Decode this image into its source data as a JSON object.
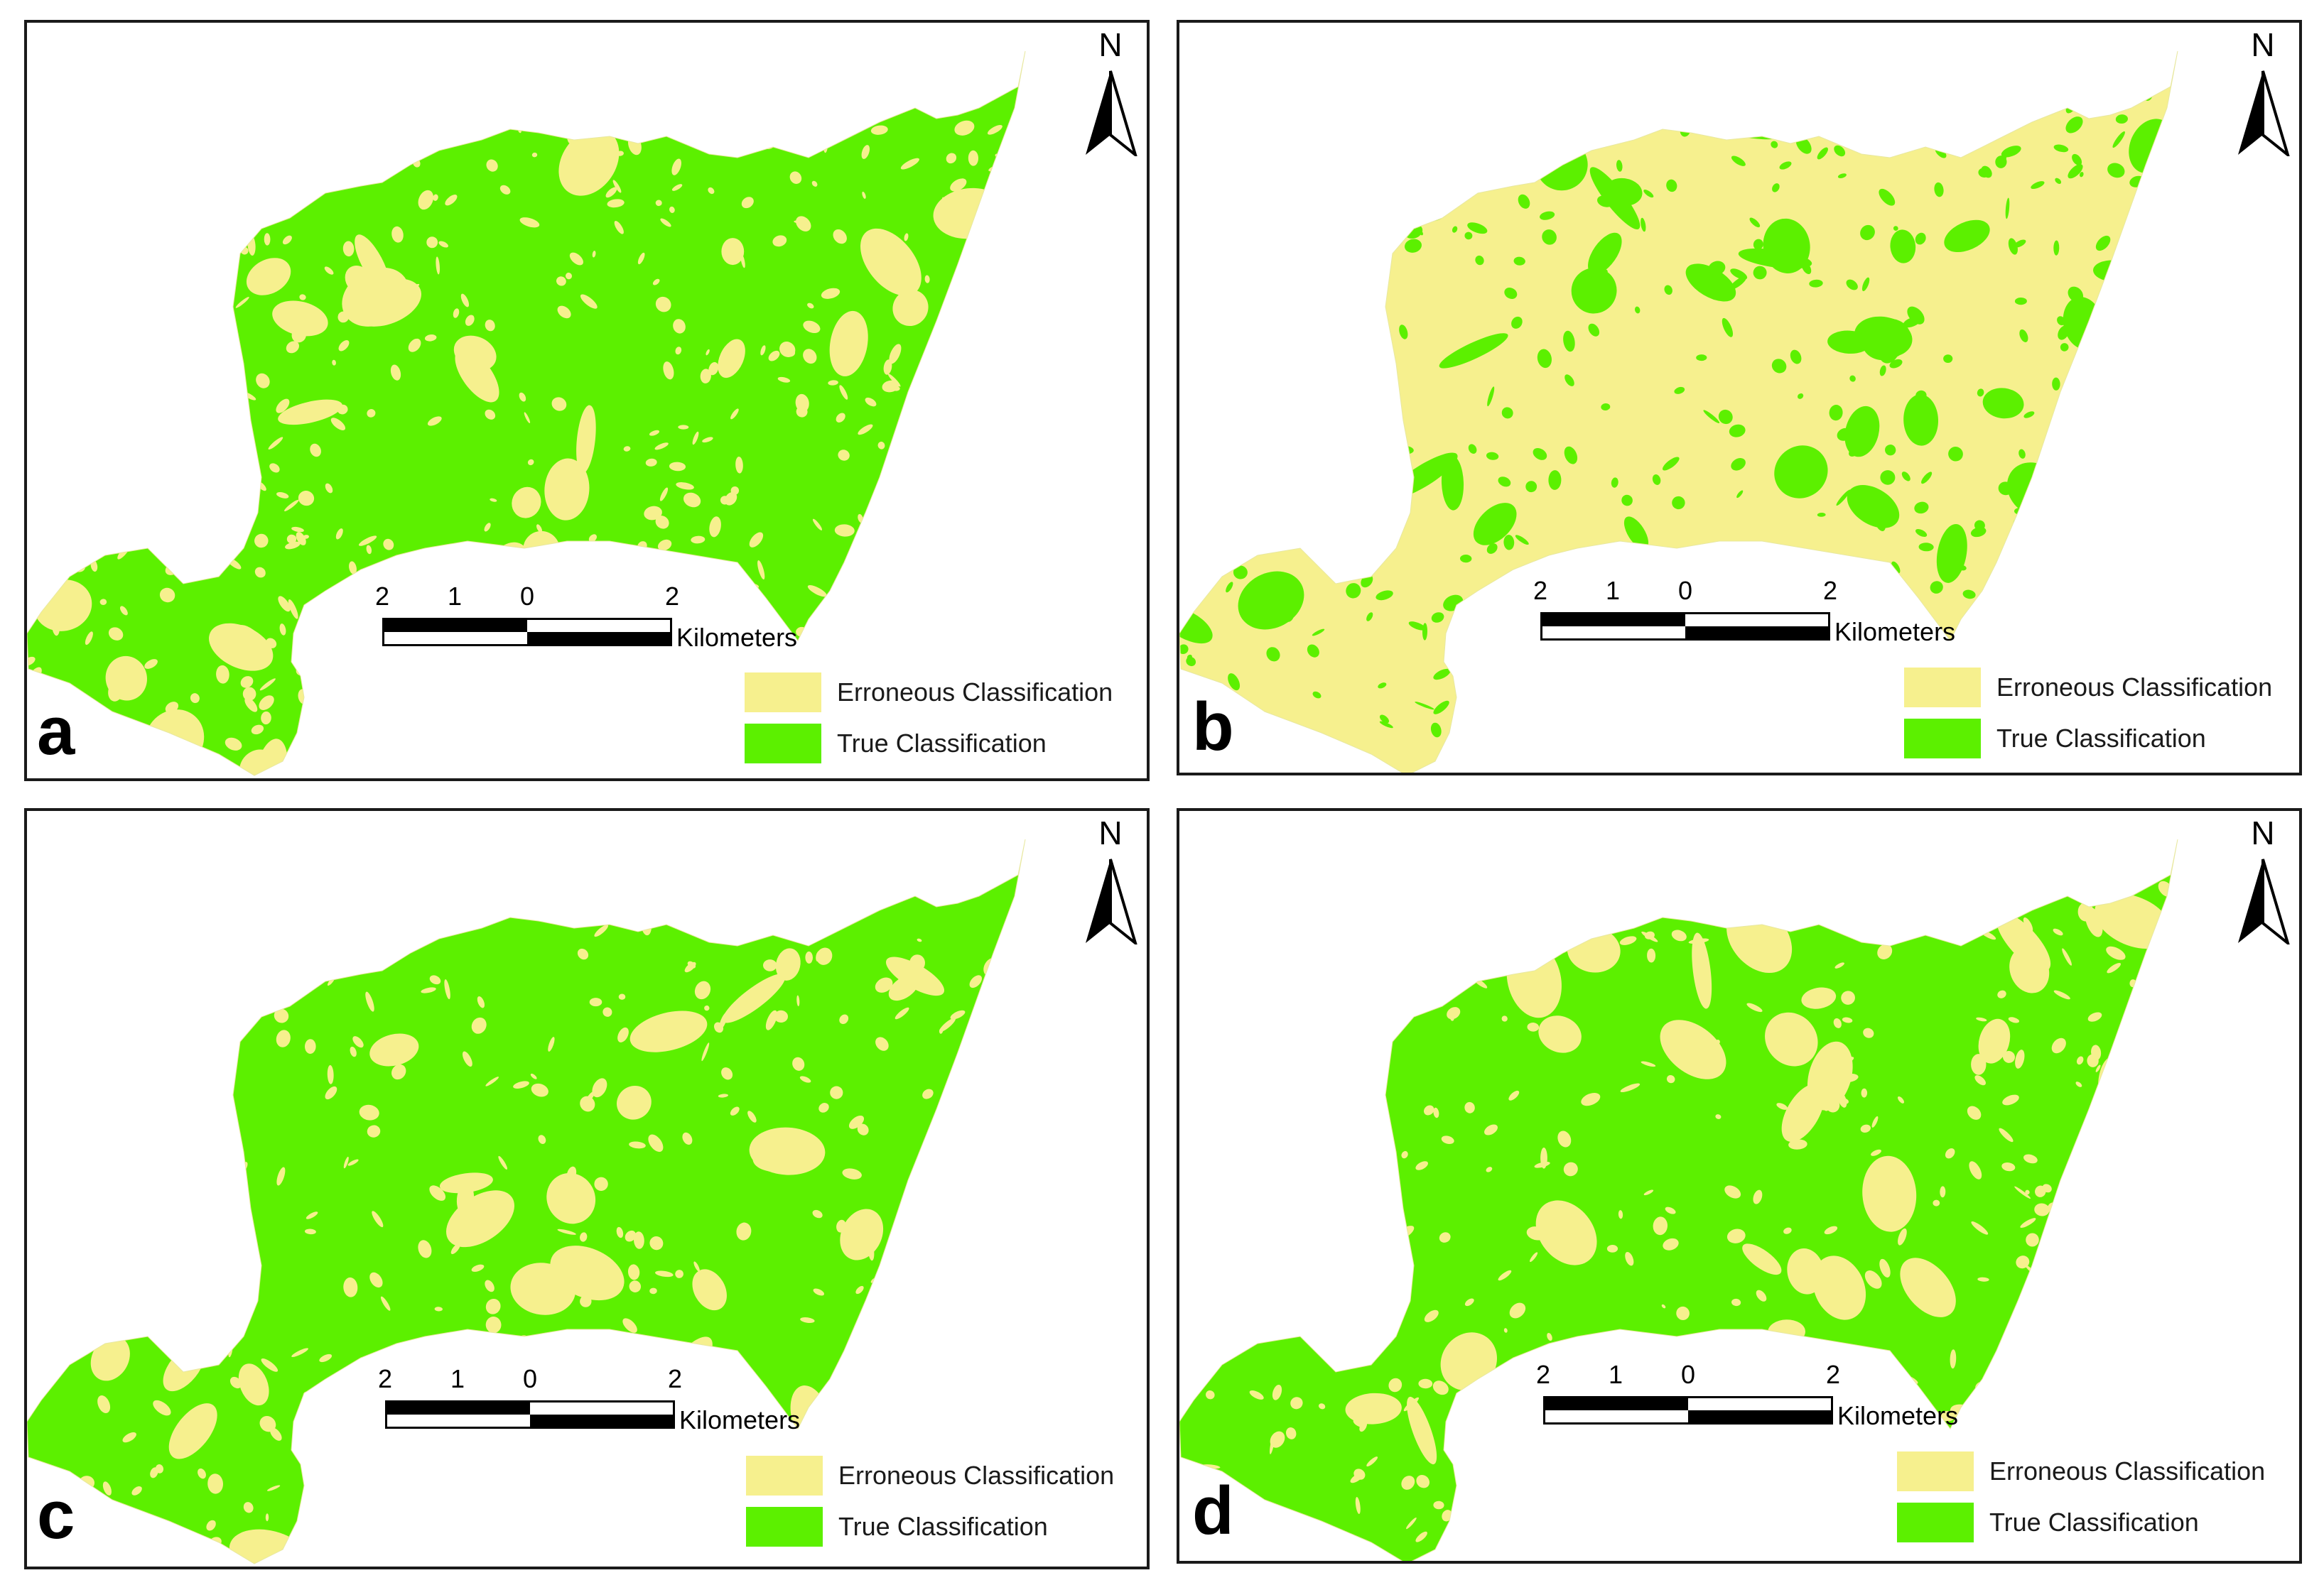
{
  "colors": {
    "erroneous": "#f6f08e",
    "true": "#5cf000",
    "ink": "#000000"
  },
  "north_label": "N",
  "scale": {
    "ticks": [
      "2",
      "1",
      "0",
      "2"
    ],
    "unit": "Kilometers"
  },
  "legend": [
    {
      "label": "Erroneous Classification",
      "color_key": "erroneous"
    },
    {
      "label": "True Classification",
      "color_key": "true"
    }
  ],
  "panels": [
    {
      "letter": "a",
      "dominant": "true",
      "erroneous_share": 0.38
    },
    {
      "letter": "b",
      "dominant": "erroneous",
      "erroneous_share": 0.72
    },
    {
      "letter": "c",
      "dominant": "true",
      "erroneous_share": 0.22
    },
    {
      "letter": "d",
      "dominant": "true",
      "erroneous_share": 0.24
    }
  ]
}
